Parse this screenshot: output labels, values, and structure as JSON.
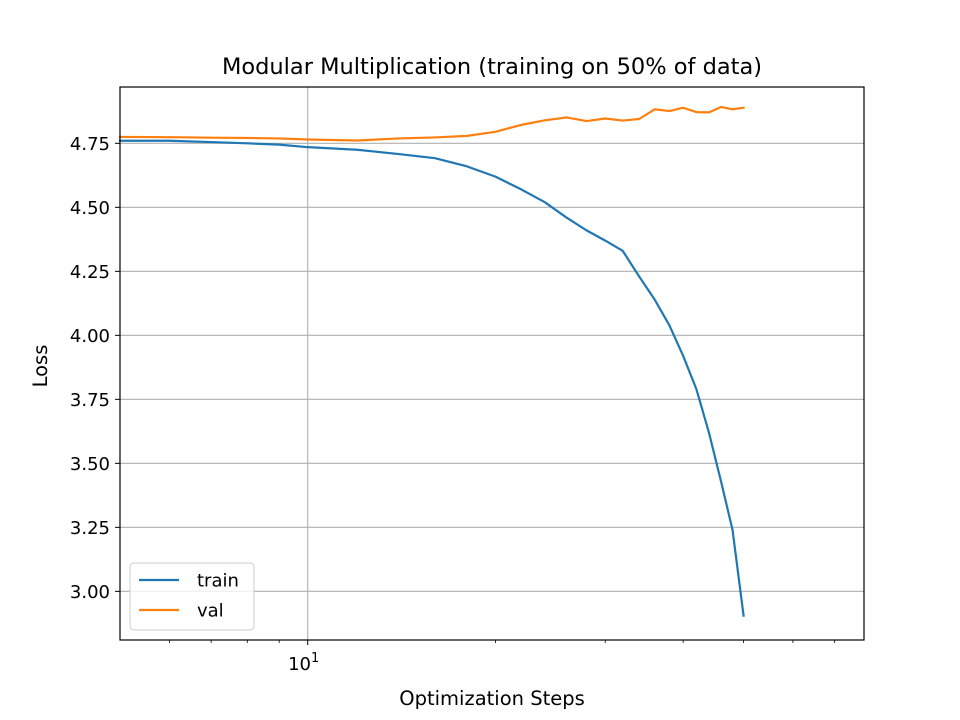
{
  "chart_data": {
    "type": "line",
    "title": "Modular Multiplication (training on 50% of data)",
    "xlabel": "Optimization Steps",
    "ylabel": "Loss",
    "x_scale": "log",
    "xlim": [
      5,
      78
    ],
    "ylim": [
      2.81,
      4.97
    ],
    "x_major_ticks": [
      {
        "value": 10,
        "base": "10",
        "exponent": "1"
      }
    ],
    "x_minor_ticks": [
      6,
      7,
      8,
      9,
      20,
      30,
      40,
      50,
      60,
      70
    ],
    "y_ticks": [
      3.0,
      3.25,
      3.5,
      3.75,
      4.0,
      4.25,
      4.5,
      4.75
    ],
    "y_tick_labels": [
      "3.00",
      "3.25",
      "3.50",
      "3.75",
      "4.00",
      "4.25",
      "4.50",
      "4.75"
    ],
    "grid": true,
    "legend_position": "lower-left",
    "series": [
      {
        "name": "train",
        "color": "#1f77b4",
        "x": [
          5,
          6,
          7,
          8,
          9,
          10,
          12,
          14,
          16,
          18,
          20,
          22,
          24,
          26,
          28,
          30,
          32,
          34,
          36,
          38,
          40,
          42,
          44,
          46,
          48,
          50
        ],
        "y": [
          4.76,
          4.76,
          4.755,
          4.75,
          4.745,
          4.735,
          4.725,
          4.708,
          4.692,
          4.66,
          4.62,
          4.57,
          4.52,
          4.46,
          4.41,
          4.37,
          4.33,
          4.23,
          4.14,
          4.04,
          3.92,
          3.79,
          3.62,
          3.43,
          3.24,
          2.905
        ]
      },
      {
        "name": "val",
        "color": "#ff7f0e",
        "x": [
          5,
          6,
          7,
          8,
          9,
          10,
          12,
          14,
          16,
          18,
          20,
          22,
          24,
          26,
          28,
          30,
          32,
          34,
          36,
          38,
          40,
          42,
          44,
          46,
          48,
          50
        ],
        "y": [
          4.775,
          4.774,
          4.772,
          4.771,
          4.769,
          4.765,
          4.761,
          4.769,
          4.773,
          4.779,
          4.795,
          4.822,
          4.84,
          4.851,
          4.837,
          4.847,
          4.839,
          4.845,
          4.883,
          4.876,
          4.889,
          4.872,
          4.871,
          4.892,
          4.883,
          4.889
        ]
      }
    ]
  }
}
